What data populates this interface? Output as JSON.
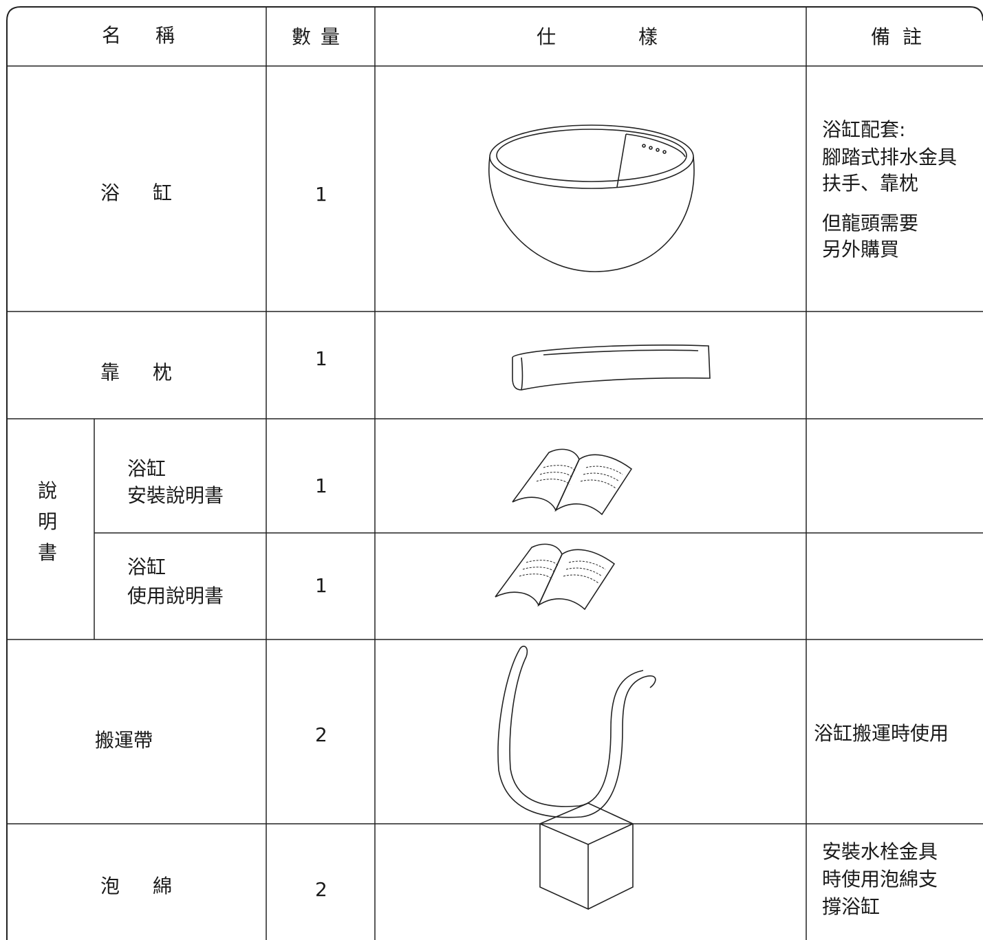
{
  "header": [
    "名稱",
    "數量",
    "仕樣",
    "備註"
  ],
  "rows": [
    {
      "name": "浴缸",
      "quantity": 1,
      "remarks": [
        "浴缸配套:",
        "腳踏式排水金具",
        "扶手、靠枕",
        "但龍頭需要",
        "另外購買"
      ]
    },
    {
      "name": "靠枕",
      "quantity": 1
    },
    {
      "group": [
        "說",
        "明",
        "書"
      ],
      "items": [
        {
          "name": [
            "浴缸",
            "安裝說明書"
          ],
          "quantity": 1
        },
        {
          "name": [
            "浴缸",
            "使用說明書"
          ],
          "quantity": 1
        }
      ]
    },
    {
      "name": "搬運帶",
      "quantity": 2,
      "remarks": [
        "浴缸搬運時使用"
      ]
    },
    {
      "name": "泡綿",
      "quantity": 2,
      "remarks": [
        "安裝水栓金具",
        "時使用泡綿支",
        "撐浴缸"
      ]
    }
  ]
}
